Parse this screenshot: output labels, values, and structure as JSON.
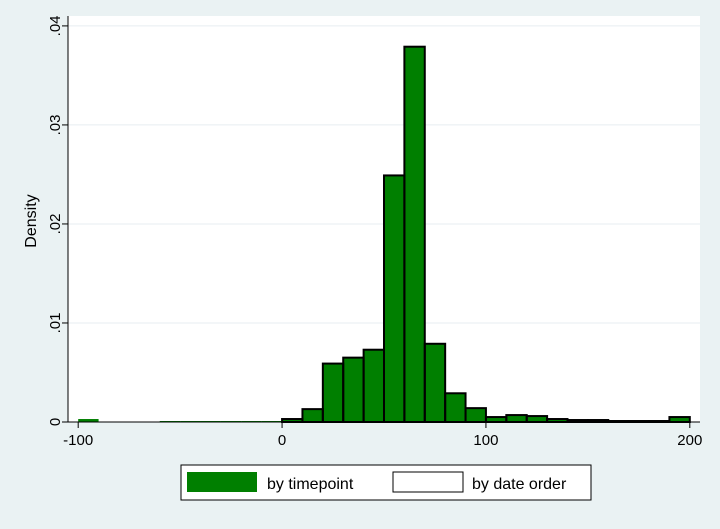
{
  "colors": {
    "background": "#eaf2f3",
    "plot_background": "#ffffff",
    "grid": "#e7eef0",
    "bar_fill": "#007f00",
    "bar_stroke": "#000000",
    "hollow_fill": "#ffffff"
  },
  "chart_data": {
    "type": "bar",
    "title": "",
    "xlabel": "",
    "ylabel": "Density",
    "xlim": [
      -105,
      205
    ],
    "ylim": [
      0,
      0.041
    ],
    "x_ticks": [
      -100,
      0,
      100,
      200
    ],
    "x_tick_labels": [
      "-100",
      "0",
      "100",
      "200"
    ],
    "y_ticks": [
      0,
      0.01,
      0.02,
      0.03,
      0.04
    ],
    "y_tick_labels": [
      "0",
      ".01",
      ".02",
      ".03",
      ".04"
    ],
    "grid": true,
    "legend_position": "bottom",
    "bin_width": 10,
    "series": [
      {
        "name": "by timepoint",
        "style": "filled",
        "bins": [
          {
            "x0": -100,
            "x1": -90,
            "value": 0.0003
          },
          {
            "x0": -60,
            "x1": -50,
            "value": 0.0001
          },
          {
            "x0": -50,
            "x1": -40,
            "value": 0.0001
          },
          {
            "x0": -40,
            "x1": -30,
            "value": 0.0001
          },
          {
            "x0": -30,
            "x1": -20,
            "value": 0.0001
          },
          {
            "x0": -20,
            "x1": -10,
            "value": 0.0001
          },
          {
            "x0": -10,
            "x1": 0,
            "value": 0.0001
          },
          {
            "x0": 0,
            "x1": 10,
            "value": 0.0003
          },
          {
            "x0": 10,
            "x1": 20,
            "value": 0.0013
          },
          {
            "x0": 20,
            "x1": 30,
            "value": 0.0059
          },
          {
            "x0": 30,
            "x1": 40,
            "value": 0.0065
          },
          {
            "x0": 40,
            "x1": 50,
            "value": 0.0073
          },
          {
            "x0": 50,
            "x1": 60,
            "value": 0.0249
          },
          {
            "x0": 60,
            "x1": 70,
            "value": 0.0379
          },
          {
            "x0": 70,
            "x1": 80,
            "value": 0.0079
          },
          {
            "x0": 80,
            "x1": 90,
            "value": 0.0029
          },
          {
            "x0": 90,
            "x1": 100,
            "value": 0.0014
          },
          {
            "x0": 100,
            "x1": 110,
            "value": 0.0005
          },
          {
            "x0": 110,
            "x1": 120,
            "value": 0.0007
          },
          {
            "x0": 120,
            "x1": 130,
            "value": 0.0006
          },
          {
            "x0": 130,
            "x1": 140,
            "value": 0.0003
          },
          {
            "x0": 140,
            "x1": 150,
            "value": 0.0002
          },
          {
            "x0": 150,
            "x1": 160,
            "value": 0.0002
          },
          {
            "x0": 160,
            "x1": 170,
            "value": 0.0001
          },
          {
            "x0": 170,
            "x1": 180,
            "value": 0.0001
          },
          {
            "x0": 180,
            "x1": 190,
            "value": 0.0001
          },
          {
            "x0": 190,
            "x1": 200,
            "value": 0.0005
          }
        ]
      },
      {
        "name": "by date order",
        "style": "hollow",
        "bins": [
          {
            "x0": 0,
            "x1": 10,
            "value": 0.0003
          },
          {
            "x0": 10,
            "x1": 20,
            "value": 0.0013
          },
          {
            "x0": 20,
            "x1": 30,
            "value": 0.0059
          },
          {
            "x0": 30,
            "x1": 40,
            "value": 0.0065
          },
          {
            "x0": 40,
            "x1": 50,
            "value": 0.0073
          },
          {
            "x0": 50,
            "x1": 60,
            "value": 0.0249
          },
          {
            "x0": 60,
            "x1": 70,
            "value": 0.0379
          },
          {
            "x0": 70,
            "x1": 80,
            "value": 0.0079
          },
          {
            "x0": 80,
            "x1": 90,
            "value": 0.0029
          },
          {
            "x0": 90,
            "x1": 100,
            "value": 0.0014
          },
          {
            "x0": 100,
            "x1": 110,
            "value": 0.0005
          },
          {
            "x0": 110,
            "x1": 120,
            "value": 0.0007
          },
          {
            "x0": 120,
            "x1": 130,
            "value": 0.0006
          },
          {
            "x0": 130,
            "x1": 140,
            "value": 0.0003
          },
          {
            "x0": 140,
            "x1": 150,
            "value": 0.0002
          },
          {
            "x0": 150,
            "x1": 160,
            "value": 0.0002
          },
          {
            "x0": 160,
            "x1": 170,
            "value": 0.0001
          },
          {
            "x0": 170,
            "x1": 180,
            "value": 0.0001
          },
          {
            "x0": 180,
            "x1": 190,
            "value": 0.0001
          },
          {
            "x0": 190,
            "x1": 200,
            "value": 0.0005
          }
        ]
      }
    ]
  }
}
